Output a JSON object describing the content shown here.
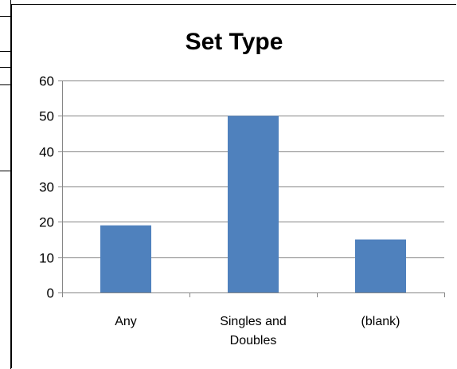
{
  "chart_data": {
    "type": "bar",
    "title": "Set Type",
    "categories": [
      "Any",
      "Singles and Doubles",
      "(blank)"
    ],
    "category_lines": [
      [
        "Any"
      ],
      [
        "Singles and",
        "Doubles"
      ],
      [
        "(blank)"
      ]
    ],
    "values": [
      19,
      50,
      15
    ],
    "xlabel": "",
    "ylabel": "",
    "ylim": [
      0,
      60
    ],
    "yticks": [
      0,
      10,
      20,
      30,
      40,
      50,
      60
    ],
    "grid": true,
    "legend": "none",
    "bar_color": "#4f81bd",
    "grid_color": "#868686"
  },
  "colors": {
    "bar": "#4f81bd",
    "grid": "#868686",
    "axis": "#868686"
  }
}
